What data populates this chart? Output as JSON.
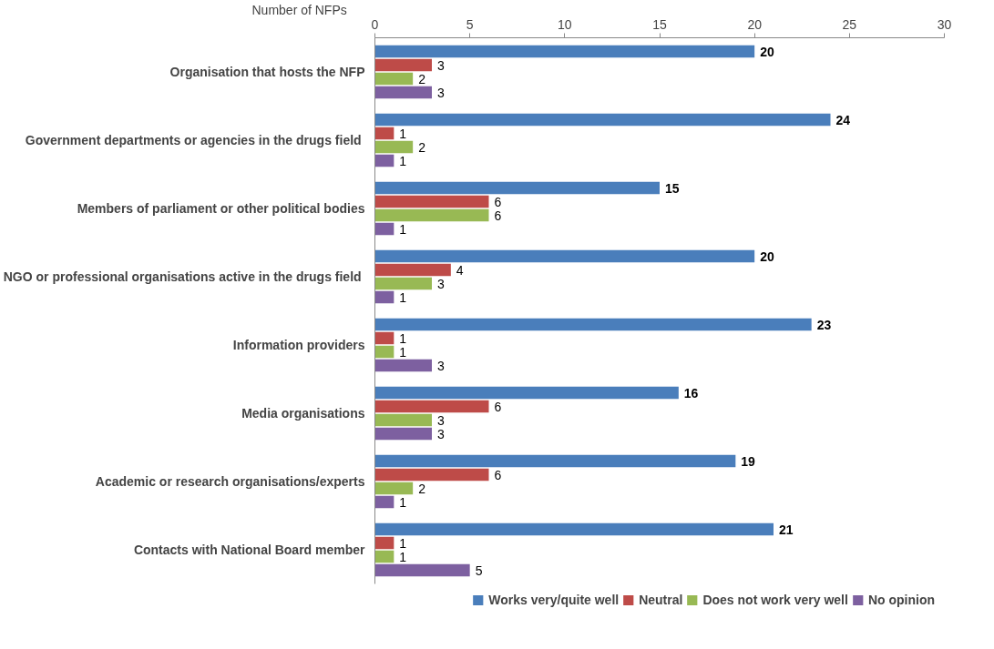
{
  "chart_data": {
    "type": "bar",
    "orientation": "horizontal",
    "xlabel": "Number of NFPs",
    "categories": [
      "Organisation that hosts the NFP",
      "Government departments or agencies  in the drugs field",
      "Members of parliament or other political bodies",
      "NGO or professional organisations  active in the drugs field",
      "Information providers",
      "Media organisations",
      "Academic or research organisations/experts",
      "Contacts with National Board member"
    ],
    "series": [
      {
        "name": "Works very/quite well",
        "color": "#4a7ebb",
        "values": [
          20,
          24,
          15,
          20,
          23,
          16,
          19,
          21
        ]
      },
      {
        "name": "Neutral",
        "color": "#be4b48",
        "values": [
          3,
          1,
          6,
          4,
          1,
          6,
          6,
          1
        ]
      },
      {
        "name": "Does not work very well",
        "color": "#98b954",
        "values": [
          2,
          2,
          6,
          3,
          1,
          3,
          2,
          1
        ]
      },
      {
        "name": "No opinion",
        "color": "#7d60a0",
        "values": [
          3,
          1,
          1,
          1,
          3,
          3,
          1,
          5
        ]
      }
    ],
    "xlim": [
      0,
      30
    ],
    "xticks": [
      0,
      5,
      10,
      15,
      20,
      25,
      30
    ],
    "data_labels": true,
    "grid": false,
    "legend": "bottom"
  }
}
